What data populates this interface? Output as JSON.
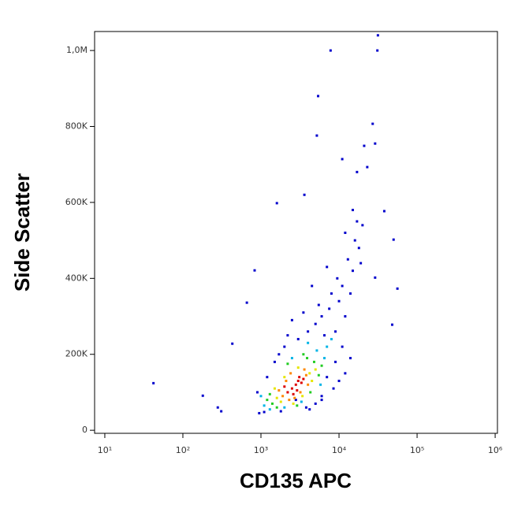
{
  "chart_data": {
    "type": "scatter",
    "x_label": "CD135 APC",
    "y_label": "Side Scatter",
    "x_scale": "log",
    "xlim": [
      7.4,
      1070000
    ],
    "ylim": [
      -8000,
      1050000
    ],
    "xticks": [
      {
        "value": 10,
        "label": "10¹"
      },
      {
        "value": 100,
        "label": "10²"
      },
      {
        "value": 1000,
        "label": "10³"
      },
      {
        "value": 10000,
        "label": "10⁴"
      },
      {
        "value": 100000,
        "label": "10⁵"
      },
      {
        "value": 1000000,
        "label": "10⁶"
      }
    ],
    "yticks": [
      0,
      {
        "value": 200000,
        "label": "200K"
      },
      {
        "value": 400000,
        "label": "400K"
      },
      {
        "value": 600000,
        "label": "600K"
      },
      {
        "value": 800000,
        "label": "800K"
      },
      {
        "value": 1000000,
        "label": "1,0M"
      }
    ],
    "series": [
      {
        "color": "#0000cc",
        "x": [
          42,
          7800,
          31000,
          31500,
          5400,
          5200,
          27000,
          29000,
          21000,
          11000,
          17000,
          23000,
          1600,
          3600,
          38000,
          50000,
          56000,
          48000,
          29000,
          830,
          660,
          430,
          180,
          280,
          310,
          900,
          1200,
          1500,
          2000,
          3000,
          4000,
          5000,
          6000,
          7500,
          9000,
          10000,
          12000,
          11000,
          14000,
          15000,
          13000,
          16000,
          18000,
          17000,
          9500,
          8000,
          6500,
          7000,
          5500,
          12000,
          19000,
          20000,
          15000,
          3500,
          2500,
          4500,
          2800,
          1800,
          3800,
          5000,
          6000,
          8500,
          10000,
          12000,
          14000,
          11000,
          9000,
          7000,
          950,
          1100,
          4200,
          6000,
          1700,
          2200
        ],
        "y": [
          124000,
          1000000,
          1000000,
          1040000,
          880000,
          776000,
          807000,
          755000,
          749000,
          714000,
          680000,
          693000,
          598000,
          620000,
          577000,
          502000,
          373000,
          278000,
          402000,
          421000,
          336000,
          228000,
          91000,
          60000,
          50000,
          100000,
          140000,
          180000,
          220000,
          240000,
          260000,
          280000,
          300000,
          320000,
          260000,
          340000,
          300000,
          380000,
          360000,
          420000,
          450000,
          500000,
          480000,
          550000,
          400000,
          360000,
          250000,
          430000,
          330000,
          520000,
          440000,
          540000,
          580000,
          310000,
          290000,
          380000,
          80000,
          50000,
          60000,
          70000,
          90000,
          110000,
          130000,
          150000,
          190000,
          220000,
          180000,
          140000,
          45000,
          48000,
          55000,
          80000,
          200000,
          250000
        ]
      },
      {
        "color": "#00b4e6",
        "x": [
          1100,
          5200,
          2500,
          6500,
          1300,
          7000,
          4000,
          2000,
          3300,
          8000,
          1000,
          5800
        ],
        "y": [
          65000,
          210000,
          190000,
          190000,
          55000,
          220000,
          230000,
          60000,
          75000,
          240000,
          90000,
          120000
        ]
      },
      {
        "color": "#22cc22",
        "x": [
          1400,
          1300,
          4800,
          2200,
          5500,
          3900,
          1600,
          2900,
          6000,
          1200,
          4300,
          3500
        ],
        "y": [
          70000,
          95000,
          180000,
          175000,
          145000,
          190000,
          60000,
          65000,
          170000,
          80000,
          100000,
          200000
        ]
      },
      {
        "color": "#e6e600",
        "x": [
          1600,
          4200,
          2000,
          3000,
          1800,
          4500,
          2600,
          3400,
          1500,
          5000
        ],
        "y": [
          85000,
          150000,
          140000,
          165000,
          75000,
          130000,
          70000,
          90000,
          110000,
          160000
        ]
      },
      {
        "color": "#ff8800",
        "x": [
          1900,
          3800,
          2400,
          2100,
          3200,
          2700,
          4000,
          1700,
          3600,
          2300
        ],
        "y": [
          90000,
          145000,
          150000,
          130000,
          100000,
          85000,
          120000,
          105000,
          160000,
          80000
        ]
      },
      {
        "color": "#dd0000",
        "x": [
          2500,
          2800,
          3000,
          2200,
          3300,
          2600,
          3100,
          2000,
          2900,
          3500
        ],
        "y": [
          110000,
          120000,
          130000,
          100000,
          125000,
          95000,
          140000,
          115000,
          105000,
          135000
        ]
      }
    ]
  }
}
